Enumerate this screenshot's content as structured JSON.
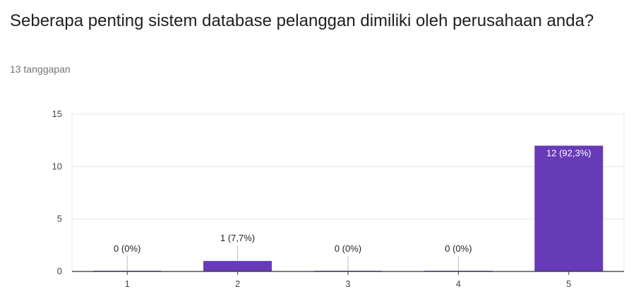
{
  "header": {
    "title": "Seberapa penting sistem database pelanggan dimiliki oleh perusahaan anda?",
    "response_count": "13 tanggapan"
  },
  "colors": {
    "bar": "#673ab7",
    "grid": "#e6e6e6",
    "axis": "#333333",
    "label_outside": "#222222",
    "label_inside": "#ffffff"
  },
  "chart_data": {
    "type": "bar",
    "categories": [
      "1",
      "2",
      "3",
      "4",
      "5"
    ],
    "values": [
      0,
      1,
      0,
      0,
      12
    ],
    "data_labels": [
      "0 (0%)",
      "1 (7,7%)",
      "0 (0%)",
      "0 (0%)",
      "12 (92,3%)"
    ],
    "ylim": [
      0,
      15
    ],
    "yticks": [
      0,
      5,
      10,
      15
    ],
    "grid": true,
    "legend": "none"
  }
}
